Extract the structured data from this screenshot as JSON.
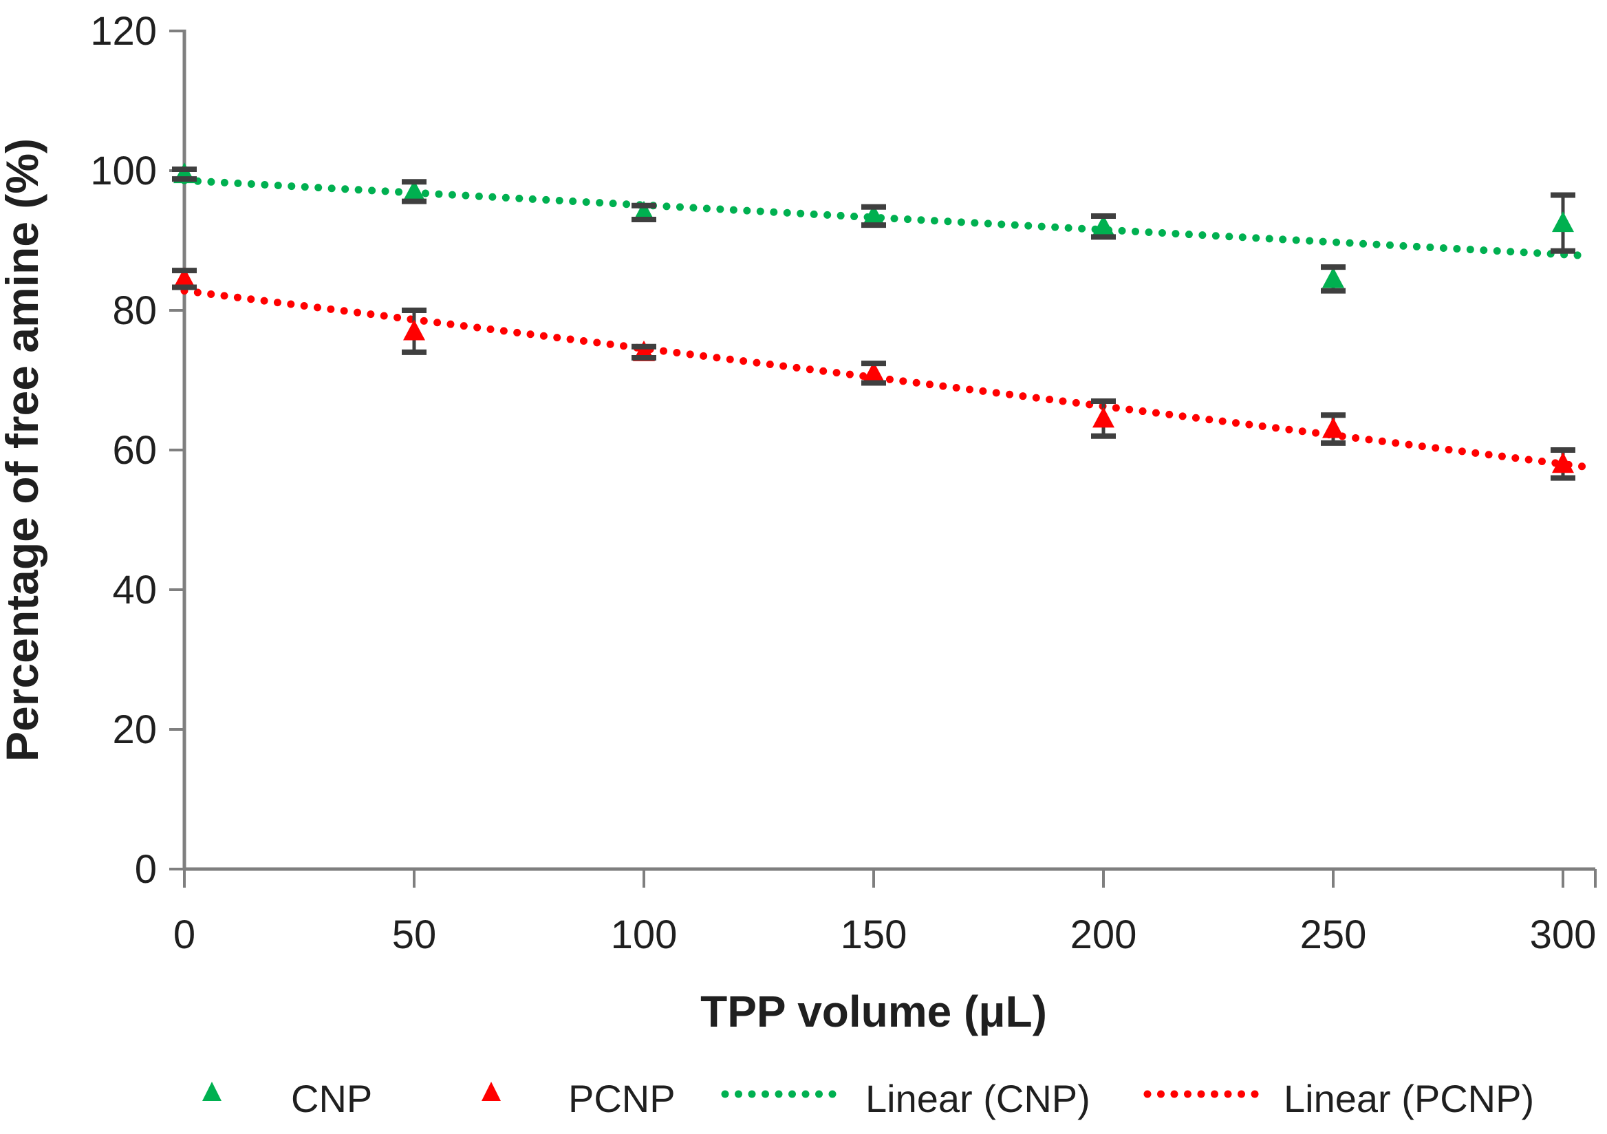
{
  "figure": {
    "background": "#FFFFFF",
    "description": "Scatter chart of percentage of free amine versus TPP volume for CNP and PCNP with error bars and dotted linear trendlines"
  },
  "chart_data": {
    "type": "scatter",
    "title": "",
    "xlabel": "TPP volume (μL)",
    "ylabel": "Percentage of free amine (%)",
    "xlim": [
      0,
      300
    ],
    "ylim": [
      0,
      120
    ],
    "xticks": [
      0,
      50,
      100,
      150,
      200,
      250,
      300
    ],
    "yticks": [
      0,
      20,
      40,
      60,
      80,
      100,
      120
    ],
    "grid": false,
    "legend_position": "bottom",
    "x": [
      0,
      50,
      100,
      150,
      200,
      250,
      300
    ],
    "series": [
      {
        "name": "CNP",
        "marker": "triangle",
        "color": "#00B050",
        "values": [
          99.5,
          97,
          94,
          93.5,
          92,
          84.5,
          92.5
        ],
        "error_bars": [
          0.7,
          1.4,
          1.0,
          1.3,
          1.5,
          1.7,
          4.0
        ]
      },
      {
        "name": "PCNP",
        "marker": "triangle",
        "color": "#FF0000",
        "values": [
          84.5,
          77,
          74,
          71,
          64.5,
          63,
          58
        ],
        "error_bars": [
          1.2,
          3.0,
          0.8,
          1.4,
          2.5,
          2.0,
          2.0
        ]
      }
    ],
    "trendlines": [
      {
        "name": "Linear (CNP)",
        "color": "#00B050",
        "style": "dotted",
        "y_at_x0": 98.6,
        "y_at_x300": 88.0
      },
      {
        "name": "Linear (PCNP)",
        "color": "#FF0000",
        "style": "dotted",
        "y_at_x0": 82.8,
        "y_at_x300": 58.0
      }
    ]
  },
  "legend": {
    "items": [
      {
        "label": "CNP",
        "marker": "triangle",
        "color": "#00B050"
      },
      {
        "label": "PCNP",
        "marker": "triangle",
        "color": "#FF0000"
      },
      {
        "label": "Linear (CNP)",
        "marker": "dotted-line",
        "color": "#00B050"
      },
      {
        "label": "Linear (PCNP)",
        "marker": "dotted-line",
        "color": "#FF0000"
      }
    ]
  },
  "colors": {
    "cnp_green": "#00B050",
    "pcnp_red": "#FF0000",
    "axis_gray": "#7F7F7F",
    "error_bar_gray": "#3F3F3F",
    "text_black": "#1F1F1F"
  }
}
